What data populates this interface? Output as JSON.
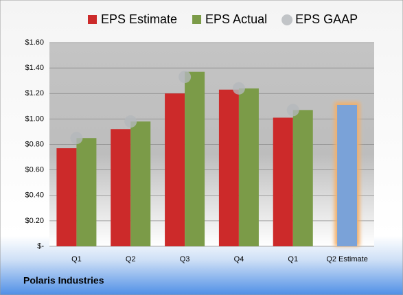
{
  "chart_data": {
    "type": "bar",
    "categories": [
      "Q1",
      "Q2",
      "Q3",
      "Q4",
      "Q1",
      "Q2 Estimate"
    ],
    "series": [
      {
        "name": "EPS Estimate",
        "color": "#cc2a2a",
        "values": [
          0.77,
          0.92,
          1.2,
          1.23,
          1.01,
          1.11
        ]
      },
      {
        "name": "EPS Actual",
        "color": "#7b9b48",
        "values": [
          0.85,
          0.98,
          1.37,
          1.24,
          1.07,
          null
        ]
      },
      {
        "name": "EPS GAAP",
        "color": "#b4b8bc",
        "marker": "circle",
        "values": [
          0.85,
          0.98,
          1.33,
          1.24,
          1.07,
          null
        ]
      }
    ],
    "highlight": {
      "category": 5,
      "color": "#7aa2d8",
      "glow": "#f3b06a"
    },
    "ylim": [
      0,
      1.6
    ],
    "yticks": [
      {
        "value": 0,
        "label": "$-"
      },
      {
        "value": 0.2,
        "label": "$0.20"
      },
      {
        "value": 0.4,
        "label": "$0.40"
      },
      {
        "value": 0.6,
        "label": "$0.60"
      },
      {
        "value": 0.8,
        "label": "$0.80"
      },
      {
        "value": 1.0,
        "label": "$1.00"
      },
      {
        "value": 1.2,
        "label": "$1.20"
      },
      {
        "value": 1.4,
        "label": "$1.40"
      },
      {
        "value": 1.6,
        "label": "$1.60"
      }
    ],
    "grid": true,
    "legend": "top",
    "footnote": "Polaris Industries"
  }
}
